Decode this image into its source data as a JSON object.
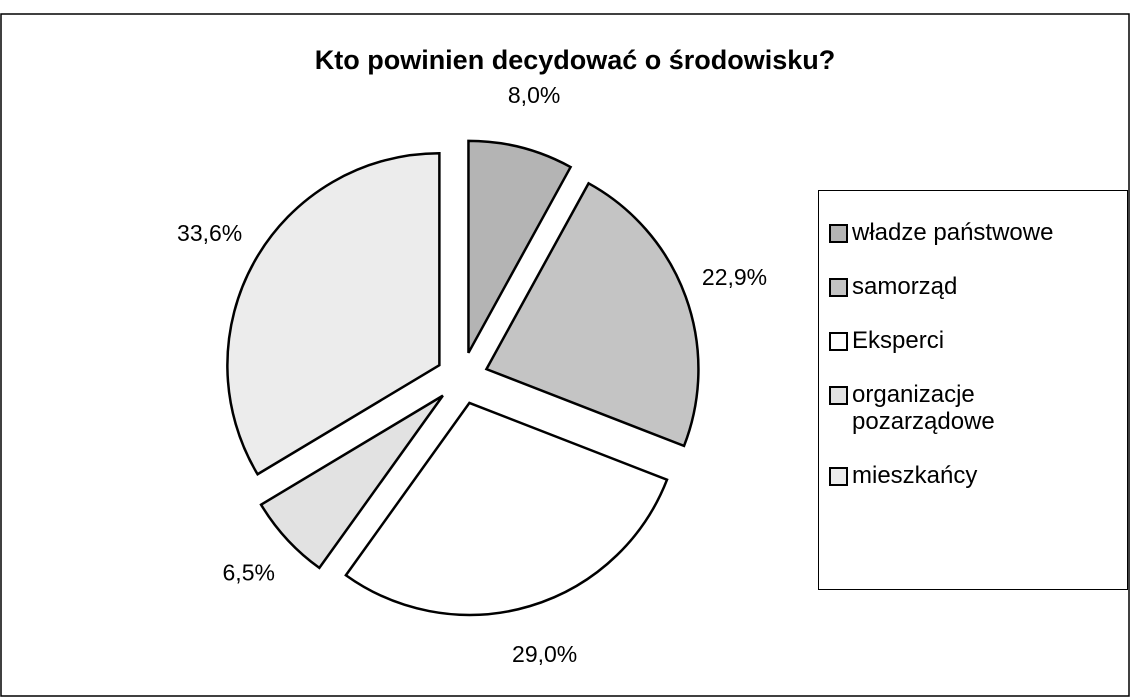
{
  "chart_data": {
    "type": "pie",
    "title": "Kto powinien decydować o środowisku?",
    "categories": [
      "władze państwowe",
      "samorząd",
      "Eksperci",
      "organizacje pozarządowe",
      "mieszkańcy"
    ],
    "values": [
      8.0,
      22.9,
      29.0,
      6.5,
      33.6
    ],
    "value_labels": [
      "8,0%",
      "22,9%",
      "29,0%",
      "6,5%",
      "33,6%"
    ],
    "colors": [
      "#b4b4b4",
      "#c4c4c4",
      "#ffffff",
      "#e2e2e2",
      "#ececec"
    ],
    "legend": "right"
  }
}
